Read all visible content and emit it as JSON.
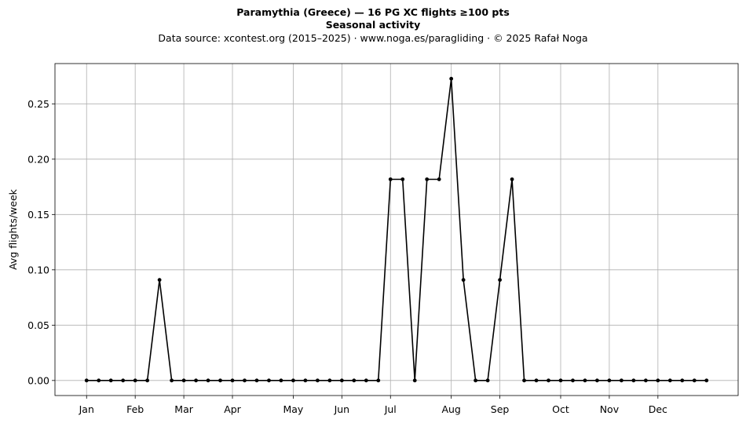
{
  "chart_data": {
    "type": "line",
    "title": "Paramythia (Greece)  —  16 PG XC flights ≥100 pts",
    "subtitle": "Seasonal activity",
    "source": "Data source: xcontest.org (2015–2025)  ·  www.noga.es/paragliding  ·  © 2025 Rafał Noga",
    "xlabel": "",
    "ylabel": "Avg flights/week",
    "ylim": [
      -0.0136,
      0.2864
    ],
    "xlim": [
      -2.6,
      53.6
    ],
    "grid": true,
    "line_color": "#000000",
    "x_ticks": [
      {
        "x": 0,
        "label": "Jan"
      },
      {
        "x": 4,
        "label": "Feb"
      },
      {
        "x": 8,
        "label": "Mar"
      },
      {
        "x": 12,
        "label": "Apr"
      },
      {
        "x": 17,
        "label": "May"
      },
      {
        "x": 21,
        "label": "Jun"
      },
      {
        "x": 25,
        "label": "Jul"
      },
      {
        "x": 30,
        "label": "Aug"
      },
      {
        "x": 34,
        "label": "Sep"
      },
      {
        "x": 39,
        "label": "Oct"
      },
      {
        "x": 43,
        "label": "Nov"
      },
      {
        "x": 47,
        "label": "Dec"
      }
    ],
    "y_ticks": [
      {
        "y": 0.0,
        "label": "0.00"
      },
      {
        "y": 0.05,
        "label": "0.05"
      },
      {
        "y": 0.1,
        "label": "0.10"
      },
      {
        "y": 0.15,
        "label": "0.15"
      },
      {
        "y": 0.2,
        "label": "0.20"
      },
      {
        "y": 0.25,
        "label": "0.25"
      }
    ],
    "series": [
      {
        "x": [
          0,
          1,
          2,
          3,
          4,
          5,
          6,
          7,
          8,
          9,
          10,
          11,
          12,
          13,
          14,
          15,
          16,
          17,
          18,
          19,
          20,
          21,
          22,
          23,
          24,
          25,
          26,
          27,
          28,
          29,
          30,
          31,
          32,
          33,
          34,
          35,
          36,
          37,
          38,
          39,
          40,
          41,
          42,
          43,
          44,
          45,
          46,
          47,
          48,
          49,
          50,
          51
        ],
        "values": [
          0,
          0,
          0,
          0,
          0,
          0,
          0.0909,
          0,
          0,
          0,
          0,
          0,
          0,
          0,
          0,
          0,
          0,
          0,
          0,
          0,
          0,
          0,
          0,
          0,
          0,
          0.1818,
          0.1818,
          0,
          0.1818,
          0.1818,
          0.2727,
          0.0909,
          0,
          0,
          0.0909,
          0.1818,
          0,
          0,
          0,
          0,
          0,
          0,
          0,
          0,
          0,
          0,
          0,
          0,
          0,
          0,
          0,
          0
        ]
      }
    ]
  }
}
